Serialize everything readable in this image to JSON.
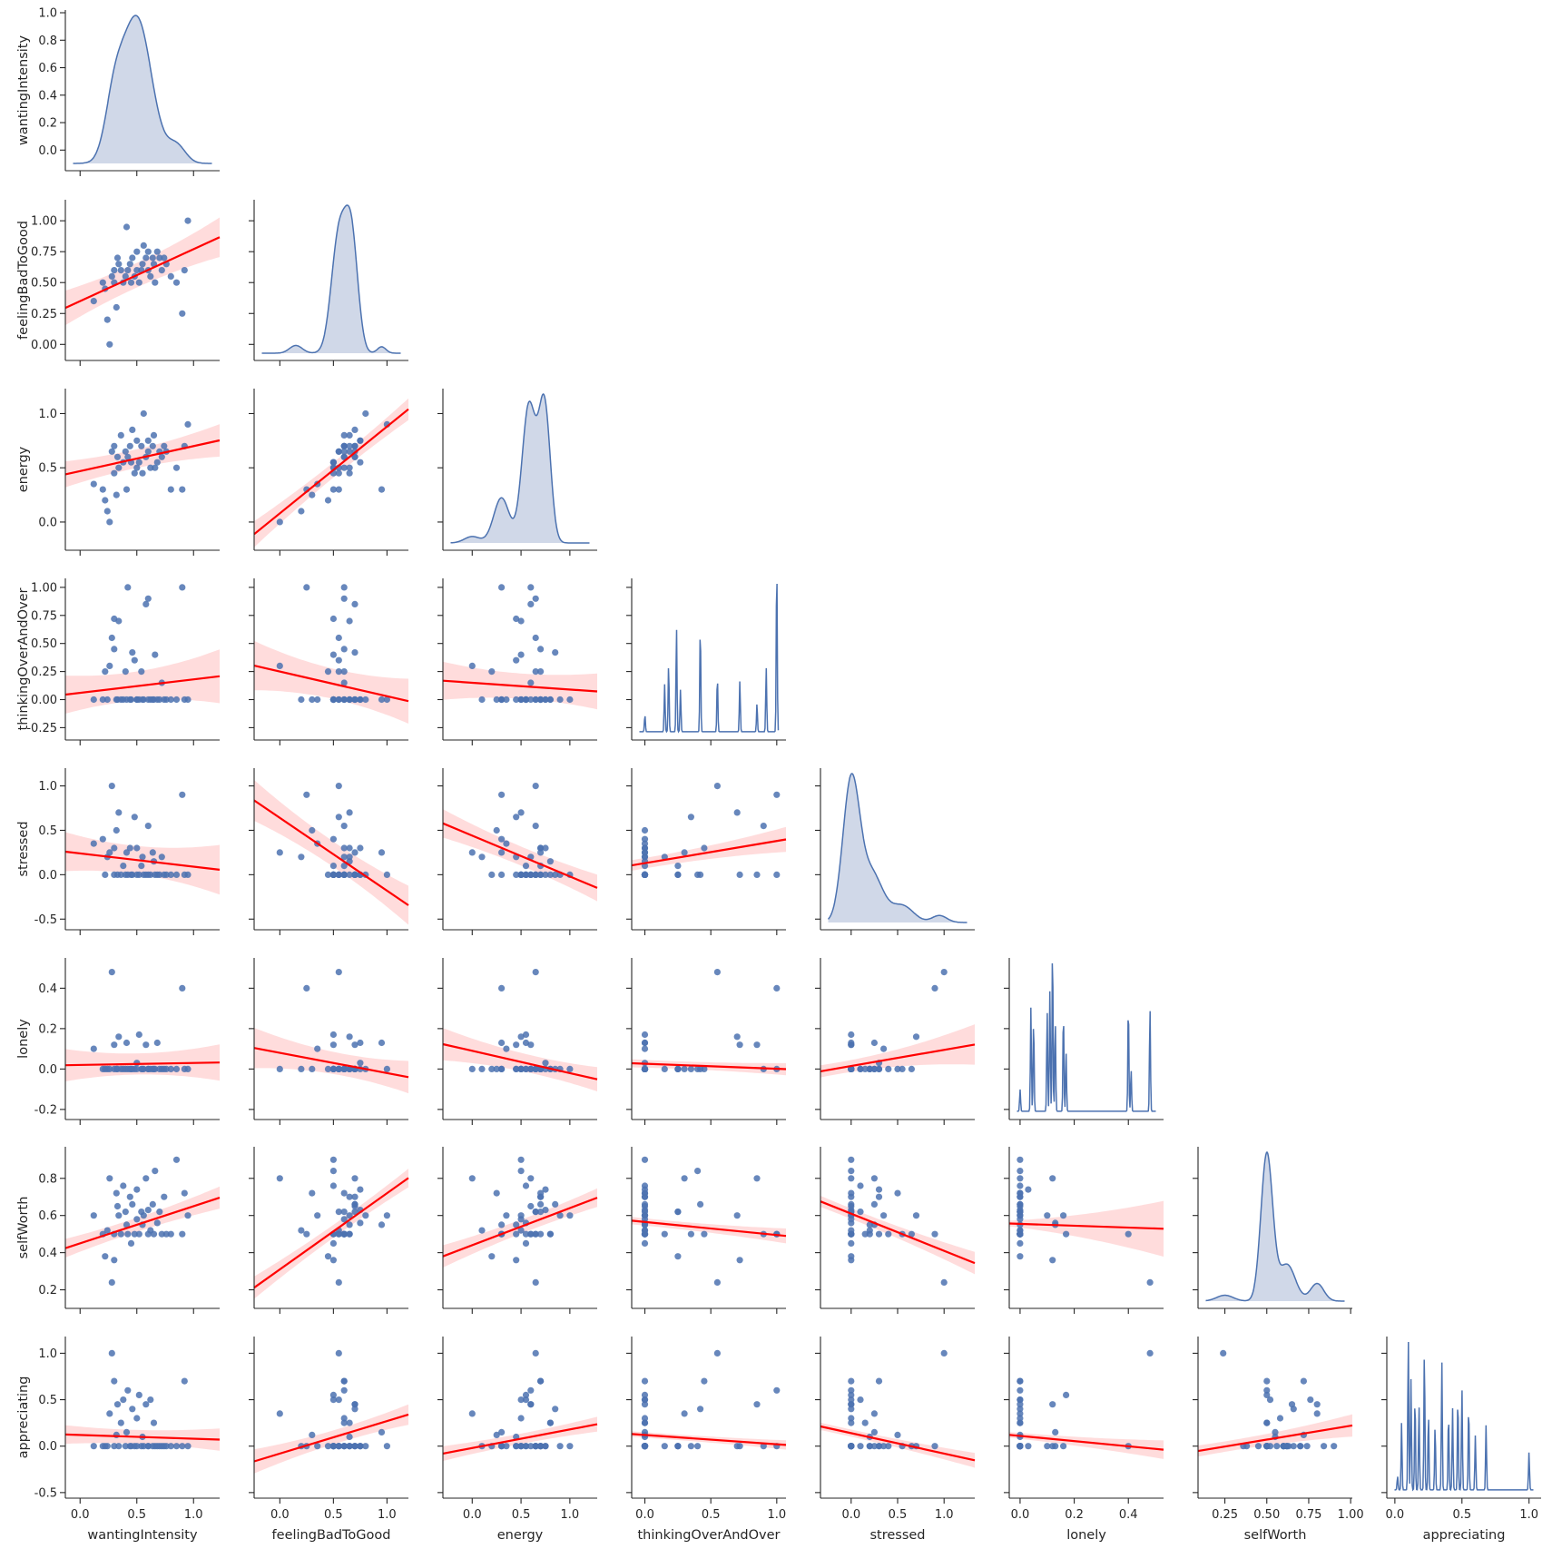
{
  "chart_data": {
    "type": "pairplot",
    "variables": [
      "wantingIntensity",
      "feelingBadToGood",
      "energy",
      "thinkingOverAndOver",
      "stressed",
      "lonely",
      "selfWorth",
      "appreciating"
    ],
    "diag_kind": "kde",
    "colors": {
      "points": "#4c72b0",
      "kde_fill": "#d0d8e8",
      "kde_line": "#4c72b0",
      "regression": "#ff0000",
      "ci_band": "#ffd6d6"
    },
    "axes": [
      {
        "name": "wantingIntensity",
        "lim": [
          -0.13,
          1.23
        ],
        "ticks": [
          0.0,
          0.5,
          1.0
        ],
        "y_lim": [
          -0.15,
          1.02
        ],
        "y_ticks": [
          0.0,
          0.2,
          0.4,
          0.6,
          0.8,
          1.0
        ]
      },
      {
        "name": "feelingBadToGood",
        "lim": [
          -0.24,
          1.2
        ],
        "ticks": [
          0.0,
          0.5,
          1.0
        ],
        "y_lim": [
          -0.13,
          1.17
        ],
        "y_ticks": [
          0.0,
          0.25,
          0.5,
          0.75,
          1.0
        ]
      },
      {
        "name": "energy",
        "lim": [
          -0.3,
          1.28
        ],
        "ticks": [
          0.0,
          0.5,
          1.0
        ],
        "y_lim": [
          -0.26,
          1.23
        ],
        "y_ticks": [
          0.0,
          0.5,
          1.0
        ]
      },
      {
        "name": "thinkingOverAndOver",
        "lim": [
          -0.1,
          1.07
        ],
        "ticks": [
          0.0,
          0.5,
          1.0
        ],
        "y_lim": [
          -0.36,
          1.08
        ],
        "y_ticks": [
          -0.25,
          0.0,
          0.25,
          0.5,
          0.75,
          1.0
        ]
      },
      {
        "name": "stressed",
        "lim": [
          -0.33,
          1.33
        ],
        "ticks": [
          0.0,
          0.5,
          1.0
        ],
        "y_lim": [
          -0.62,
          1.2
        ],
        "y_ticks": [
          -0.5,
          0.0,
          0.5,
          1.0
        ]
      },
      {
        "name": "lonely",
        "lim": [
          -0.04,
          0.53
        ],
        "ticks": [
          0.0,
          0.2,
          0.4
        ],
        "y_lim": [
          -0.25,
          0.55
        ],
        "y_ticks": [
          -0.2,
          0.0,
          0.2,
          0.4
        ]
      },
      {
        "name": "selfWorth",
        "lim": [
          0.09,
          1.01
        ],
        "ticks": [
          0.25,
          0.5,
          0.75,
          1.0
        ],
        "y_lim": [
          0.1,
          0.97
        ],
        "y_ticks": [
          0.2,
          0.4,
          0.6,
          0.8
        ]
      },
      {
        "name": "appreciating",
        "lim": [
          -0.06,
          1.09
        ],
        "ticks": [
          0.0,
          0.5,
          1.0
        ],
        "y_lim": [
          -0.56,
          1.18
        ],
        "y_ticks": [
          -0.5,
          0.0,
          0.5,
          1.0
        ]
      }
    ],
    "regressions": [
      {
        "x": "wantingIntensity",
        "y": "feelingBadToGood",
        "intercept": 0.35,
        "slope": 0.42,
        "ci": [
          0.14,
          0.05,
          0.16
        ]
      },
      {
        "x": "wantingIntensity",
        "y": "energy",
        "intercept": 0.47,
        "slope": 0.23,
        "ci": [
          0.12,
          0.04,
          0.15
        ]
      },
      {
        "x": "feelingBadToGood",
        "y": "energy",
        "intercept": 0.08,
        "slope": 0.8,
        "ci": [
          0.12,
          0.03,
          0.1
        ]
      },
      {
        "x": "wantingIntensity",
        "y": "thinkingOverAndOver",
        "intercept": 0.06,
        "slope": 0.12,
        "ci": [
          0.17,
          0.06,
          0.24
        ]
      },
      {
        "x": "feelingBadToGood",
        "y": "thinkingOverAndOver",
        "intercept": 0.25,
        "slope": -0.22,
        "ci": [
          0.22,
          0.06,
          0.2
        ]
      },
      {
        "x": "energy",
        "y": "thinkingOverAndOver",
        "intercept": 0.15,
        "slope": -0.06,
        "ci": [
          0.17,
          0.06,
          0.16
        ]
      },
      {
        "x": "wantingIntensity",
        "y": "stressed",
        "intercept": 0.24,
        "slope": -0.15,
        "ci": [
          0.22,
          0.07,
          0.28
        ]
      },
      {
        "x": "feelingBadToGood",
        "y": "stressed",
        "intercept": 0.64,
        "slope": -0.82,
        "ci": [
          0.23,
          0.06,
          0.22
        ]
      },
      {
        "x": "energy",
        "y": "stressed",
        "intercept": 0.44,
        "slope": -0.46,
        "ci": [
          0.16,
          0.06,
          0.15
        ]
      },
      {
        "x": "thinkingOverAndOver",
        "y": "stressed",
        "intercept": 0.13,
        "slope": 0.25,
        "ci": [
          0.06,
          0.05,
          0.14
        ]
      },
      {
        "x": "wantingIntensity",
        "y": "lonely",
        "intercept": 0.02,
        "slope": 0.01,
        "ci": [
          0.08,
          0.02,
          0.09
        ]
      },
      {
        "x": "feelingBadToGood",
        "y": "lonely",
        "intercept": 0.08,
        "slope": -0.1,
        "ci": [
          0.1,
          0.02,
          0.08
        ]
      },
      {
        "x": "energy",
        "y": "lonely",
        "intercept": 0.09,
        "slope": -0.11,
        "ci": [
          0.08,
          0.02,
          0.06
        ]
      },
      {
        "x": "thinkingOverAndOver",
        "y": "lonely",
        "intercept": 0.026,
        "slope": -0.025,
        "ci": [
          0.02,
          0.014,
          0.03
        ]
      },
      {
        "x": "stressed",
        "y": "lonely",
        "intercept": 0.015,
        "slope": 0.08,
        "ci": [
          0.03,
          0.02,
          0.1
        ]
      },
      {
        "x": "wantingIntensity",
        "y": "selfWorth",
        "intercept": 0.45,
        "slope": 0.2,
        "ci": [
          0.05,
          0.02,
          0.06
        ]
      },
      {
        "x": "feelingBadToGood",
        "y": "selfWorth",
        "intercept": 0.31,
        "slope": 0.41,
        "ci": [
          0.06,
          0.015,
          0.05
        ]
      },
      {
        "x": "energy",
        "y": "selfWorth",
        "intercept": 0.44,
        "slope": 0.2,
        "ci": [
          0.06,
          0.02,
          0.05
        ]
      },
      {
        "x": "thinkingOverAndOver",
        "y": "selfWorth",
        "intercept": 0.565,
        "slope": -0.07,
        "ci": [
          0.02,
          0.016,
          0.04
        ]
      },
      {
        "x": "stressed",
        "y": "selfWorth",
        "intercept": 0.61,
        "slope": -0.2,
        "ci": [
          0.03,
          0.02,
          0.06
        ]
      },
      {
        "x": "lonely",
        "y": "selfWorth",
        "intercept": 0.555,
        "slope": -0.05,
        "ci": [
          0.015,
          0.05,
          0.15
        ]
      },
      {
        "x": "selfWorth",
        "y": "appreciating",
        "intercept": -0.08,
        "slope": 0.3,
        "ci": [
          0.06,
          0.04,
          0.12
        ]
      },
      {
        "x": "wantingIntensity",
        "y": "appreciating",
        "intercept": 0.12,
        "slope": -0.04,
        "ci": [
          0.1,
          0.04,
          0.12
        ]
      },
      {
        "x": "feelingBadToGood",
        "y": "appreciating",
        "intercept": -0.08,
        "slope": 0.35,
        "ci": [
          0.13,
          0.03,
          0.11
        ]
      },
      {
        "x": "energy",
        "y": "appreciating",
        "intercept": -0.02,
        "slope": 0.2,
        "ci": [
          0.08,
          0.03,
          0.08
        ]
      },
      {
        "x": "thinkingOverAndOver",
        "y": "appreciating",
        "intercept": 0.12,
        "slope": -0.1,
        "ci": [
          0.03,
          0.025,
          0.05
        ]
      },
      {
        "x": "stressed",
        "y": "appreciating",
        "intercept": 0.14,
        "slope": -0.22,
        "ci": [
          0.04,
          0.03,
          0.08
        ]
      },
      {
        "x": "lonely",
        "y": "appreciating",
        "intercept": 0.11,
        "slope": -0.28,
        "ci": [
          0.03,
          0.04,
          0.1
        ]
      }
    ],
    "points": {
      "wantingIntensity": [
        0.12,
        0.2,
        0.22,
        0.24,
        0.26,
        0.28,
        0.3,
        0.3,
        0.32,
        0.33,
        0.34,
        0.36,
        0.38,
        0.4,
        0.41,
        0.42,
        0.44,
        0.45,
        0.46,
        0.48,
        0.5,
        0.5,
        0.52,
        0.54,
        0.55,
        0.56,
        0.58,
        0.6,
        0.6,
        0.62,
        0.64,
        0.65,
        0.66,
        0.68,
        0.7,
        0.72,
        0.74,
        0.76,
        0.8,
        0.85,
        0.9,
        0.92,
        0.95
      ],
      "feelingBadToGood": [
        0.35,
        0.5,
        0.45,
        0.2,
        0.0,
        0.55,
        0.6,
        0.5,
        0.3,
        0.7,
        0.65,
        0.6,
        0.5,
        0.55,
        0.95,
        0.6,
        0.65,
        0.5,
        0.7,
        0.55,
        0.6,
        0.75,
        0.5,
        0.6,
        0.65,
        0.8,
        0.7,
        0.6,
        0.75,
        0.55,
        0.7,
        0.65,
        0.5,
        0.75,
        0.7,
        0.6,
        0.7,
        0.65,
        0.55,
        0.5,
        0.25,
        0.6,
        1.0
      ],
      "energy": [
        0.35,
        0.3,
        0.2,
        0.1,
        0.0,
        0.65,
        0.7,
        0.45,
        0.25,
        0.6,
        0.5,
        0.8,
        0.55,
        0.65,
        0.3,
        0.6,
        0.7,
        0.55,
        0.85,
        0.45,
        0.5,
        0.75,
        0.55,
        0.7,
        0.45,
        1.0,
        0.6,
        0.65,
        0.75,
        0.5,
        0.7,
        0.8,
        0.5,
        0.55,
        0.65,
        0.6,
        0.7,
        0.65,
        0.3,
        0.5,
        0.3,
        0.7,
        0.9
      ],
      "thinkingOverAndOver": [
        0.0,
        0.0,
        0.25,
        0.0,
        0.3,
        0.55,
        0.45,
        0.72,
        0.0,
        0.0,
        0.7,
        0.0,
        0.0,
        0.25,
        0.0,
        1.0,
        0.0,
        0.0,
        0.42,
        0.35,
        0.0,
        0.0,
        0.0,
        0.25,
        0.0,
        0.0,
        0.85,
        0.9,
        0.0,
        0.0,
        0.0,
        0.0,
        0.4,
        0.0,
        0.0,
        0.15,
        0.0,
        0.0,
        0.0,
        0.0,
        1.0,
        0.0,
        0.0
      ],
      "stressed": [
        0.35,
        0.4,
        0.0,
        0.2,
        0.25,
        1.0,
        0.3,
        0.0,
        0.5,
        0.0,
        0.7,
        0.0,
        0.1,
        0.0,
        0.25,
        0.0,
        0.3,
        0.0,
        0.0,
        0.65,
        0.0,
        0.3,
        0.0,
        0.1,
        0.2,
        0.0,
        0.0,
        0.55,
        0.0,
        0.0,
        0.25,
        0.15,
        0.0,
        0.0,
        0.0,
        0.2,
        0.0,
        0.0,
        0.0,
        0.0,
        0.9,
        0.0,
        0.0
      ],
      "lonely": [
        0.1,
        0.0,
        0.0,
        0.0,
        0.0,
        0.48,
        0.0,
        0.12,
        0.0,
        0.0,
        0.16,
        0.0,
        0.0,
        0.0,
        0.13,
        0.0,
        0.0,
        0.0,
        0.0,
        0.0,
        0.0,
        0.03,
        0.17,
        0.0,
        0.0,
        0.0,
        0.12,
        0.0,
        0.0,
        0.0,
        0.0,
        0.0,
        0.0,
        0.13,
        0.0,
        0.0,
        0.0,
        0.0,
        0.0,
        0.0,
        0.4,
        0.0,
        0.0
      ],
      "selfWorth": [
        0.6,
        0.5,
        0.38,
        0.52,
        0.8,
        0.24,
        0.5,
        0.36,
        0.72,
        0.65,
        0.6,
        0.5,
        0.76,
        0.62,
        0.55,
        0.5,
        0.7,
        0.45,
        0.66,
        0.5,
        0.58,
        0.74,
        0.5,
        0.62,
        0.55,
        0.6,
        0.8,
        0.5,
        0.63,
        0.52,
        0.66,
        0.5,
        0.84,
        0.56,
        0.62,
        0.5,
        0.7,
        0.5,
        0.5,
        0.9,
        0.5,
        0.72,
        0.6
      ],
      "appreciating": [
        0.0,
        0.0,
        0.0,
        0.0,
        0.35,
        1.0,
        0.7,
        0.0,
        0.12,
        0.45,
        0.0,
        0.25,
        0.5,
        0.0,
        0.15,
        0.6,
        0.0,
        0.0,
        0.4,
        0.0,
        0.3,
        0.0,
        0.55,
        0.0,
        0.1,
        0.0,
        0.45,
        0.0,
        0.0,
        0.5,
        0.0,
        0.25,
        0.0,
        0.0,
        0.0,
        0.0,
        0.0,
        0.0,
        0.0,
        0.0,
        0.0,
        0.7,
        0.0
      ]
    },
    "diagonal": [
      {
        "name": "wantingIntensity",
        "kind": "kde",
        "peaks": [
          [
            0.5,
            0.13,
            1.0
          ],
          [
            0.3,
            0.08,
            0.35
          ],
          [
            0.85,
            0.08,
            0.12
          ]
        ],
        "fill": true
      },
      {
        "name": "feelingBadToGood",
        "kind": "kde",
        "peaks": [
          [
            0.55,
            0.07,
            0.9
          ],
          [
            0.67,
            0.06,
            0.85
          ],
          [
            0.15,
            0.06,
            0.06
          ],
          [
            0.95,
            0.04,
            0.05
          ]
        ],
        "fill": true
      },
      {
        "name": "energy",
        "kind": "kde",
        "peaks": [
          [
            0.58,
            0.07,
            0.85
          ],
          [
            0.74,
            0.06,
            0.85
          ],
          [
            0.3,
            0.08,
            0.28
          ],
          [
            0.0,
            0.08,
            0.04
          ]
        ],
        "fill": true
      },
      {
        "name": "thinkingOverAndOver",
        "kind": "spikes",
        "spikes": [
          [
            0.0,
            0.1
          ],
          [
            0.15,
            0.28
          ],
          [
            0.18,
            0.4
          ],
          [
            0.24,
            0.62
          ],
          [
            0.27,
            0.25
          ],
          [
            0.42,
            0.63
          ],
          [
            0.55,
            0.33
          ],
          [
            0.72,
            0.3
          ],
          [
            0.85,
            0.17
          ],
          [
            0.92,
            0.38
          ],
          [
            1.0,
            1.0
          ]
        ],
        "fill": false
      },
      {
        "name": "stressed",
        "kind": "kde",
        "peaks": [
          [
            0.0,
            0.09,
            1.0
          ],
          [
            0.22,
            0.12,
            0.35
          ],
          [
            0.55,
            0.12,
            0.12
          ],
          [
            0.95,
            0.08,
            0.05
          ]
        ],
        "fill": true
      },
      {
        "name": "lonely",
        "kind": "spikes",
        "spikes": [
          [
            0.0,
            0.13
          ],
          [
            0.04,
            0.62
          ],
          [
            0.05,
            0.55
          ],
          [
            0.1,
            0.6
          ],
          [
            0.11,
            0.72
          ],
          [
            0.12,
            1.0
          ],
          [
            0.13,
            0.55
          ],
          [
            0.16,
            0.6
          ],
          [
            0.17,
            0.35
          ],
          [
            0.4,
            0.65
          ],
          [
            0.41,
            0.25
          ],
          [
            0.48,
            0.62
          ]
        ],
        "fill": false
      },
      {
        "name": "selfWorth",
        "kind": "kde",
        "peaks": [
          [
            0.5,
            0.035,
            1.0
          ],
          [
            0.62,
            0.05,
            0.25
          ],
          [
            0.8,
            0.04,
            0.12
          ],
          [
            0.25,
            0.05,
            0.04
          ]
        ],
        "fill": true
      },
      {
        "name": "appreciating",
        "kind": "spikes",
        "spikes": [
          [
            0.02,
            0.08
          ],
          [
            0.05,
            0.4
          ],
          [
            0.1,
            0.9
          ],
          [
            0.12,
            0.65
          ],
          [
            0.15,
            0.55
          ],
          [
            0.18,
            0.5
          ],
          [
            0.22,
            0.82
          ],
          [
            0.25,
            0.45
          ],
          [
            0.3,
            0.38
          ],
          [
            0.35,
            0.75
          ],
          [
            0.4,
            0.45
          ],
          [
            0.43,
            0.48
          ],
          [
            0.47,
            0.55
          ],
          [
            0.5,
            0.6
          ],
          [
            0.55,
            0.5
          ],
          [
            0.6,
            0.32
          ],
          [
            0.68,
            0.38
          ],
          [
            1.0,
            0.22
          ]
        ],
        "fill": false
      }
    ]
  }
}
